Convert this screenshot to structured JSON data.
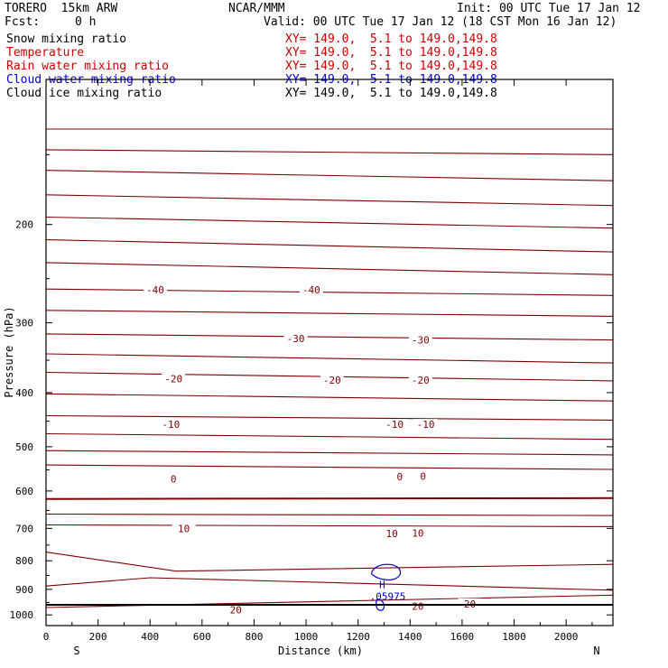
{
  "header": {
    "model": "TORERO  15km ARW",
    "org": "NCAR/MMM",
    "init": "Init: 00 UTC Tue 17 Jan 12",
    "fcst_label": "Fcst:",
    "fcst_value": "0 h",
    "valid": "Valid: 00 UTC Tue 17 Jan 12 (18 CST Mon 16 Jan 12)"
  },
  "fields": [
    {
      "name": "Snow mixing ratio",
      "xy": "XY= 149.0,  5.1 to 149.0,149.8",
      "color": "#000000"
    },
    {
      "name": "Temperature",
      "xy": "XY= 149.0,  5.1 to 149.0,149.8",
      "color": "#cc0000"
    },
    {
      "name": "Rain water mixing ratio",
      "xy": "XY= 149.0,  5.1 to 149.0,149.8",
      "color": "#cc0000"
    },
    {
      "name": "Cloud water mixing ratio",
      "xy": "XY= 149.0,  5.1 to 149.0,149.8",
      "color": "#0000cc"
    },
    {
      "name": "Cloud ice mixing ratio",
      "xy": "XY= 149.0,  5.1 to 149.0,149.8",
      "color": "#000000"
    }
  ],
  "chart_data": {
    "type": "line",
    "xlabel": "Distance (km)",
    "ylabel": "Pressure (hPa)",
    "x_ticks": [
      0,
      200,
      400,
      600,
      800,
      1000,
      1200,
      1400,
      1600,
      1800,
      2000
    ],
    "y_ticks": [
      200,
      300,
      400,
      500,
      600,
      700,
      800,
      900,
      1000
    ],
    "xlim": [
      0,
      2180
    ],
    "ylim": [
      1045,
      110
    ],
    "y_scale": "log",
    "left_end_label": "S",
    "right_end_label": "N",
    "contour_color": "#800000",
    "cloud_color": "#0000cc",
    "isotherms": [
      {
        "x": [
          0,
          2180
        ],
        "p": [
          135,
          135
        ]
      },
      {
        "x": [
          0,
          2180
        ],
        "p": [
          147,
          150
        ]
      },
      {
        "x": [
          0,
          2180
        ],
        "p": [
          160,
          167
        ]
      },
      {
        "x": [
          0,
          2180
        ],
        "p": [
          177,
          185
        ]
      },
      {
        "x": [
          0,
          2180
        ],
        "p": [
          194,
          203
        ]
      },
      {
        "x": [
          0,
          2180
        ],
        "p": [
          213,
          224
        ]
      },
      {
        "x": [
          0,
          2180
        ],
        "p": [
          234,
          246
        ]
      },
      {
        "x": [
          0,
          2180
        ],
        "p": [
          261,
          268
        ]
      },
      {
        "x": [
          0,
          2180
        ],
        "p": [
          285,
          292
        ]
      },
      {
        "x": [
          0,
          2180
        ],
        "p": [
          314,
          322
        ]
      },
      {
        "x": [
          0,
          2180
        ],
        "p": [
          341,
          354
        ]
      },
      {
        "x": [
          0,
          2180
        ],
        "p": [
          368,
          381
        ]
      },
      {
        "x": [
          0,
          2180
        ],
        "p": [
          402,
          414
        ]
      },
      {
        "x": [
          0,
          2180
        ],
        "p": [
          440,
          448
        ]
      },
      {
        "x": [
          0,
          2180
        ],
        "p": [
          474,
          485
        ]
      },
      {
        "x": [
          0,
          2180
        ],
        "p": [
          508,
          517
        ]
      },
      {
        "x": [
          0,
          2180
        ],
        "p": [
          539,
          549
        ]
      },
      {
        "x": [
          0,
          2180
        ],
        "p": [
          620,
          618
        ]
      },
      {
        "x": [
          0,
          2180
        ],
        "p": [
          660,
          664
        ]
      },
      {
        "x": [
          0,
          2180
        ],
        "p": [
          690,
          695
        ]
      },
      {
        "x": [
          0,
          500,
          2180
        ],
        "p": [
          772,
          835,
          812
        ]
      },
      {
        "x": [
          0,
          400,
          2180
        ],
        "p": [
          888,
          858,
          903
        ]
      },
      {
        "x": [
          0,
          2180
        ],
        "p": [
          970,
          922
        ]
      }
    ],
    "isotherm_labels": [
      {
        "x": 420,
        "p": 262,
        "text": "-40"
      },
      {
        "x": 1020,
        "p": 262,
        "text": "-40"
      },
      {
        "x": 960,
        "p": 320,
        "text": "-30"
      },
      {
        "x": 1440,
        "p": 322,
        "text": "-30"
      },
      {
        "x": 490,
        "p": 378,
        "text": "-20"
      },
      {
        "x": 1100,
        "p": 380,
        "text": "-20"
      },
      {
        "x": 1440,
        "p": 380,
        "text": "-20"
      },
      {
        "x": 480,
        "p": 456,
        "text": "-10"
      },
      {
        "x": 1340,
        "p": 456,
        "text": "-10"
      },
      {
        "x": 1460,
        "p": 456,
        "text": "-10"
      },
      {
        "x": 490,
        "p": 571,
        "text": "0"
      },
      {
        "x": 1360,
        "p": 566,
        "text": "0"
      },
      {
        "x": 1450,
        "p": 565,
        "text": "0"
      },
      {
        "x": 530,
        "p": 700,
        "text": "10"
      },
      {
        "x": 1330,
        "p": 715,
        "text": "10"
      },
      {
        "x": 1430,
        "p": 714,
        "text": "10"
      },
      {
        "x": 730,
        "p": 980,
        "text": "20"
      },
      {
        "x": 1430,
        "p": 965,
        "text": "20"
      },
      {
        "x": 1630,
        "p": 955,
        "text": "20"
      }
    ],
    "cloud_water": {
      "x": 1300,
      "p": 838,
      "label_h": "H",
      "label_value": ".05975"
    }
  }
}
